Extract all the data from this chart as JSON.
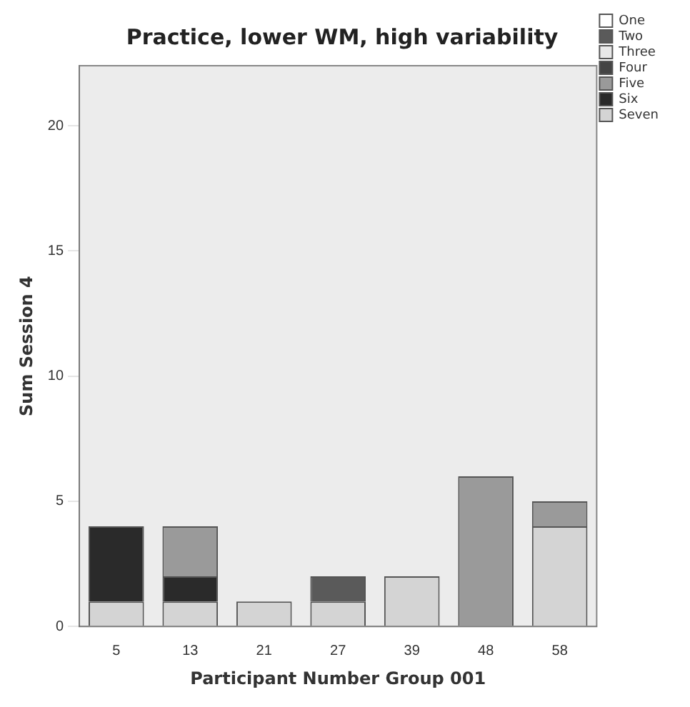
{
  "chart_data": {
    "type": "bar",
    "title": "Practice, lower WM, high variability",
    "xlabel": "Participant Number Group 001",
    "ylabel": "Sum Session 4",
    "categories": [
      "5",
      "13",
      "21",
      "27",
      "39",
      "48",
      "58"
    ],
    "stacked": true,
    "series": [
      {
        "name": "Seven",
        "color": "#d4d4d4",
        "values": [
          1,
          1,
          1,
          1,
          2,
          0,
          4
        ]
      },
      {
        "name": "Six",
        "color": "#2a2a2a",
        "values": [
          3,
          1,
          0,
          0,
          0,
          0,
          0
        ]
      },
      {
        "name": "Five",
        "color": "#9a9a9a",
        "values": [
          0,
          2,
          0,
          0,
          0,
          6,
          1
        ]
      },
      {
        "name": "Four",
        "color": "#444444",
        "values": [
          0,
          0,
          0,
          0,
          0,
          0,
          0
        ]
      },
      {
        "name": "Three",
        "color": "#e8e8e8",
        "values": [
          0,
          0,
          0,
          0,
          0,
          0,
          0
        ]
      },
      {
        "name": "Two",
        "color": "#5a5a5a",
        "values": [
          0,
          0,
          0,
          1,
          0,
          0,
          0
        ]
      },
      {
        "name": "One",
        "color": "#ffffff",
        "values": [
          0,
          0,
          0,
          0,
          0,
          0,
          0
        ]
      }
    ],
    "ylim": [
      0,
      22.4
    ],
    "yticks": [
      0,
      5,
      10,
      15,
      20
    ],
    "grid": false,
    "legend": "top right"
  }
}
